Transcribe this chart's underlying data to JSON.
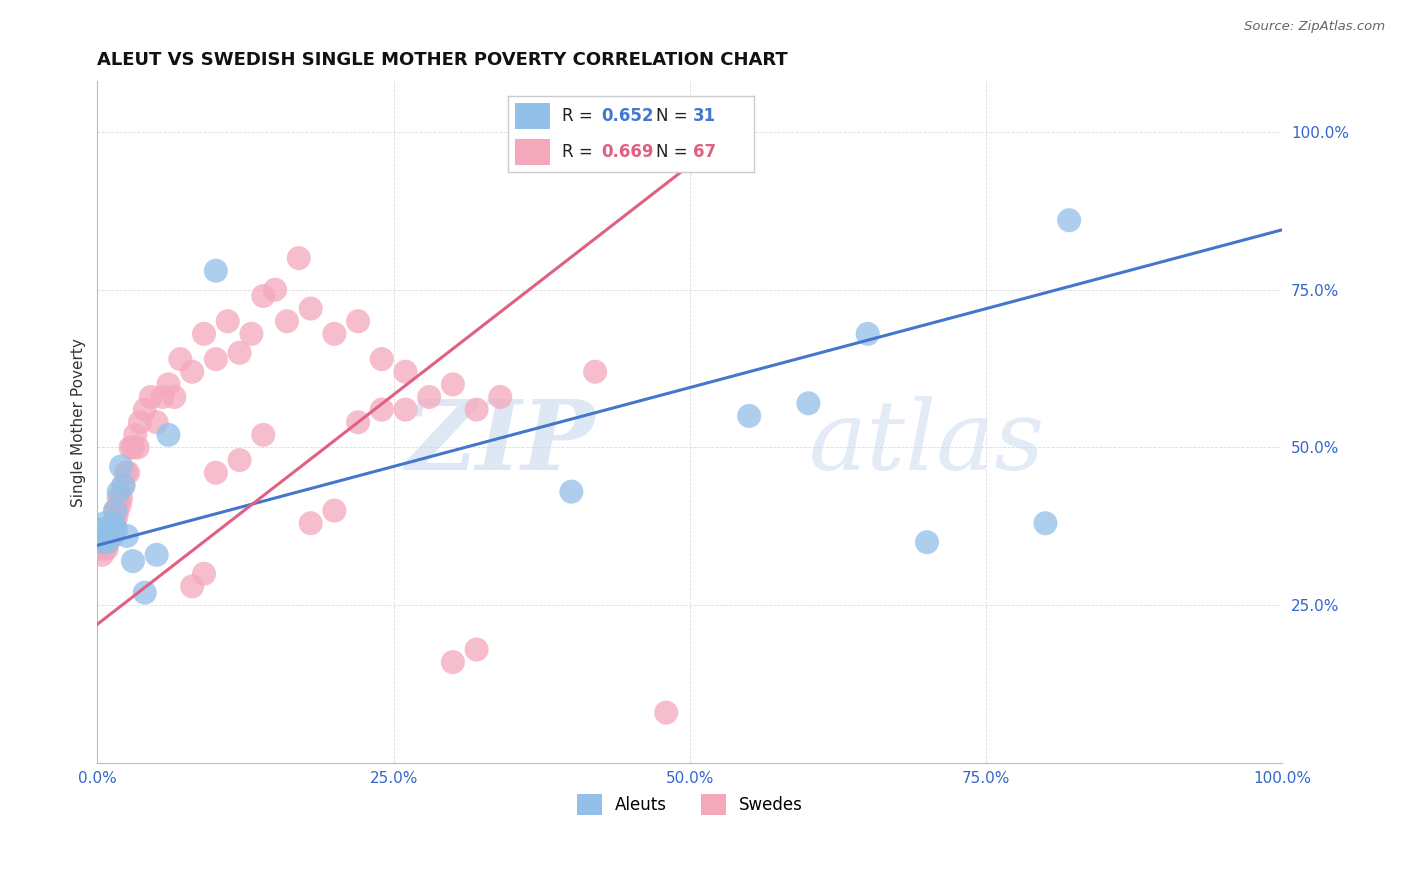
{
  "title": "ALEUT VS SWEDISH SINGLE MOTHER POVERTY CORRELATION CHART",
  "source": "Source: ZipAtlas.com",
  "ylabel": "Single Mother Poverty",
  "watermark_zip": "ZIP",
  "watermark_atlas": "atlas",
  "legend_aleuts": "Aleuts",
  "legend_swedes": "Swedes",
  "aleut_R": 0.652,
  "aleut_N": 31,
  "swede_R": 0.669,
  "swede_N": 67,
  "aleut_color": "#92c0e8",
  "swede_color": "#f4a8bc",
  "aleut_line_color": "#4477cc",
  "swede_line_color": "#e06080",
  "background_color": "#ffffff",
  "grid_color": "#cccccc",
  "aleut_x": [
    0.002,
    0.003,
    0.004,
    0.005,
    0.006,
    0.007,
    0.008,
    0.009,
    0.01,
    0.011,
    0.012,
    0.013,
    0.014,
    0.015,
    0.016,
    0.018,
    0.02,
    0.022,
    0.025,
    0.03,
    0.04,
    0.05,
    0.06,
    0.1,
    0.4,
    0.55,
    0.6,
    0.65,
    0.7,
    0.8,
    0.82
  ],
  "aleut_y": [
    0.37,
    0.36,
    0.35,
    0.36,
    0.38,
    0.37,
    0.35,
    0.36,
    0.37,
    0.36,
    0.37,
    0.36,
    0.38,
    0.4,
    0.37,
    0.43,
    0.47,
    0.44,
    0.36,
    0.32,
    0.27,
    0.33,
    0.52,
    0.78,
    0.43,
    0.55,
    0.57,
    0.68,
    0.35,
    0.38,
    0.86
  ],
  "swede_x": [
    0.002,
    0.003,
    0.004,
    0.005,
    0.006,
    0.007,
    0.008,
    0.009,
    0.01,
    0.011,
    0.012,
    0.013,
    0.014,
    0.015,
    0.016,
    0.017,
    0.018,
    0.019,
    0.02,
    0.022,
    0.024,
    0.026,
    0.028,
    0.03,
    0.032,
    0.034,
    0.036,
    0.04,
    0.045,
    0.05,
    0.055,
    0.06,
    0.065,
    0.07,
    0.08,
    0.09,
    0.1,
    0.11,
    0.12,
    0.13,
    0.14,
    0.15,
    0.16,
    0.17,
    0.18,
    0.2,
    0.22,
    0.24,
    0.26,
    0.28,
    0.3,
    0.32,
    0.34,
    0.1,
    0.12,
    0.14,
    0.22,
    0.24,
    0.26,
    0.42,
    0.18,
    0.2,
    0.08,
    0.09,
    0.3,
    0.32,
    0.48
  ],
  "swede_y": [
    0.35,
    0.34,
    0.33,
    0.36,
    0.34,
    0.35,
    0.34,
    0.35,
    0.36,
    0.37,
    0.36,
    0.38,
    0.37,
    0.4,
    0.39,
    0.4,
    0.42,
    0.41,
    0.42,
    0.44,
    0.46,
    0.46,
    0.5,
    0.5,
    0.52,
    0.5,
    0.54,
    0.56,
    0.58,
    0.54,
    0.58,
    0.6,
    0.58,
    0.64,
    0.62,
    0.68,
    0.64,
    0.7,
    0.65,
    0.68,
    0.74,
    0.75,
    0.7,
    0.8,
    0.72,
    0.68,
    0.7,
    0.64,
    0.62,
    0.58,
    0.6,
    0.56,
    0.58,
    0.46,
    0.48,
    0.52,
    0.54,
    0.56,
    0.56,
    0.62,
    0.38,
    0.4,
    0.28,
    0.3,
    0.16,
    0.18,
    0.08
  ],
  "xlim": [
    0,
    1.0
  ],
  "ylim": [
    0,
    1.08
  ],
  "xticks": [
    0.0,
    0.25,
    0.5,
    0.75,
    1.0
  ],
  "xtick_labels": [
    "0.0%",
    "25.0%",
    "50.0%",
    "75.0%",
    "100.0%"
  ],
  "ytick_labels_right": [
    "25.0%",
    "50.0%",
    "75.0%",
    "100.0%"
  ],
  "ytick_vals": [
    0.25,
    0.5,
    0.75,
    1.0
  ],
  "aleut_line_x0": 0.0,
  "aleut_line_y0": 0.345,
  "aleut_line_x1": 1.0,
  "aleut_line_y1": 0.845,
  "swede_line_x0": 0.0,
  "swede_line_y0": 0.22,
  "swede_line_x1": 0.55,
  "swede_line_y1": 1.02
}
